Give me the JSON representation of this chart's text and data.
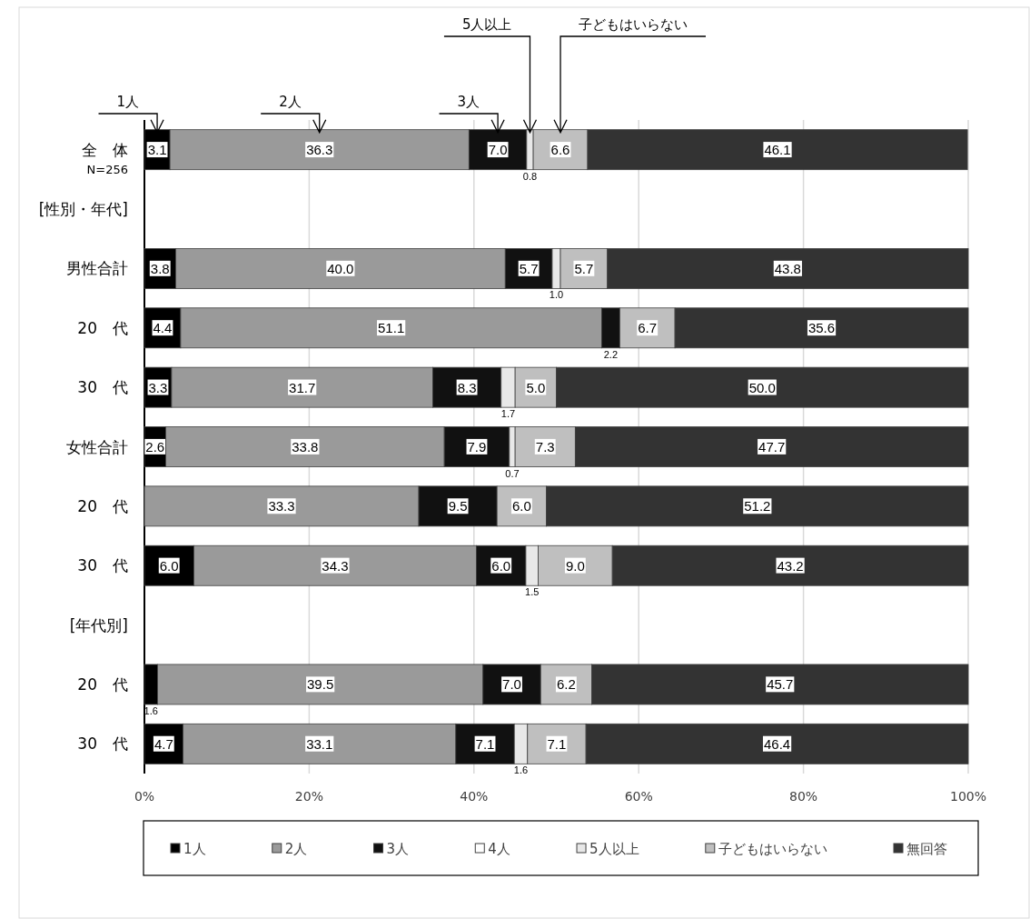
{
  "chart_data": {
    "type": "bar",
    "orientation": "horizontal",
    "stacked": true,
    "categories": [
      "全　体",
      "[性別・年代]",
      "男性合計",
      "20　代",
      "30　代",
      "女性合計",
      "20　代",
      "30　代",
      "[年代別]",
      "20　代",
      "30　代"
    ],
    "series": [
      {
        "name": "1人",
        "color": "#000000",
        "values": [
          3.1,
          null,
          3.8,
          4.4,
          3.3,
          2.6,
          null,
          6.0,
          null,
          1.6,
          4.7
        ],
        "value_labels": [
          "3.1",
          null,
          "3.8",
          "4.4",
          "3.3",
          "2.6",
          null,
          "6.0",
          null,
          "1.6",
          "4.7"
        ]
      },
      {
        "name": "2人",
        "color": "#9a9a9a",
        "values": [
          36.3,
          null,
          40.0,
          51.1,
          31.7,
          33.8,
          33.3,
          34.3,
          null,
          39.5,
          33.1
        ],
        "value_labels": [
          "36.3",
          null,
          "40.0",
          "51.1",
          "31.7",
          "33.8",
          "33.3",
          "34.3",
          null,
          "39.5",
          "33.1"
        ]
      },
      {
        "name": "3人",
        "color": "#111111",
        "values": [
          7.0,
          null,
          5.7,
          2.2,
          8.3,
          7.9,
          9.5,
          6.0,
          null,
          7.0,
          7.1
        ],
        "value_labels": [
          "7.0",
          null,
          "5.7",
          "2.2",
          "8.3",
          "7.9",
          "9.5",
          "6.0",
          null,
          "7.0",
          "7.1"
        ]
      },
      {
        "name": "4人",
        "color": "#ffffff",
        "values": [
          null,
          null,
          null,
          null,
          null,
          null,
          null,
          null,
          null,
          null,
          null
        ],
        "value_labels": [
          null,
          null,
          null,
          null,
          null,
          null,
          null,
          null,
          null,
          null,
          null
        ]
      },
      {
        "name": "5人以上",
        "color": "#e8e8e8",
        "values": [
          0.8,
          null,
          1.0,
          null,
          1.7,
          0.7,
          null,
          1.5,
          null,
          null,
          1.6
        ],
        "value_labels": [
          "0.8",
          null,
          "1.0",
          null,
          "1.7",
          "0.7",
          null,
          "1.5",
          null,
          null,
          "1.6"
        ]
      },
      {
        "name": "子どもはいらない",
        "color": "#bfbfbf",
        "values": [
          6.6,
          null,
          5.7,
          6.7,
          5.0,
          7.3,
          6.0,
          9.0,
          null,
          6.2,
          7.1
        ],
        "value_labels": [
          "6.6",
          null,
          "5.7",
          "6.7",
          "5.0",
          "7.3",
          "6.0",
          "9.0",
          null,
          "6.2",
          "7.1"
        ]
      },
      {
        "name": "無回答",
        "color": "#333333",
        "values": [
          46.1,
          null,
          43.8,
          35.6,
          50.0,
          47.7,
          51.2,
          43.2,
          null,
          45.7,
          46.4
        ],
        "value_labels": [
          "46.1",
          null,
          "43.8",
          "35.6",
          "50.0",
          "47.7",
          "51.2",
          "43.2",
          null,
          "45.7",
          "46.4"
        ]
      }
    ],
    "xlim": [
      0,
      100
    ],
    "xticks": [
      {
        "value": 0,
        "label": "0%"
      },
      {
        "value": 20,
        "label": "20%"
      },
      {
        "value": 40,
        "label": "40%"
      },
      {
        "value": 60,
        "label": "60%"
      },
      {
        "value": 80,
        "label": "80%"
      },
      {
        "value": 100,
        "label": "100%"
      }
    ],
    "grid": "x",
    "legend": "bottom",
    "annotations": [
      "N=256",
      "1人",
      "2人",
      "3人",
      "5人以上",
      "子どもはいらない"
    ]
  }
}
